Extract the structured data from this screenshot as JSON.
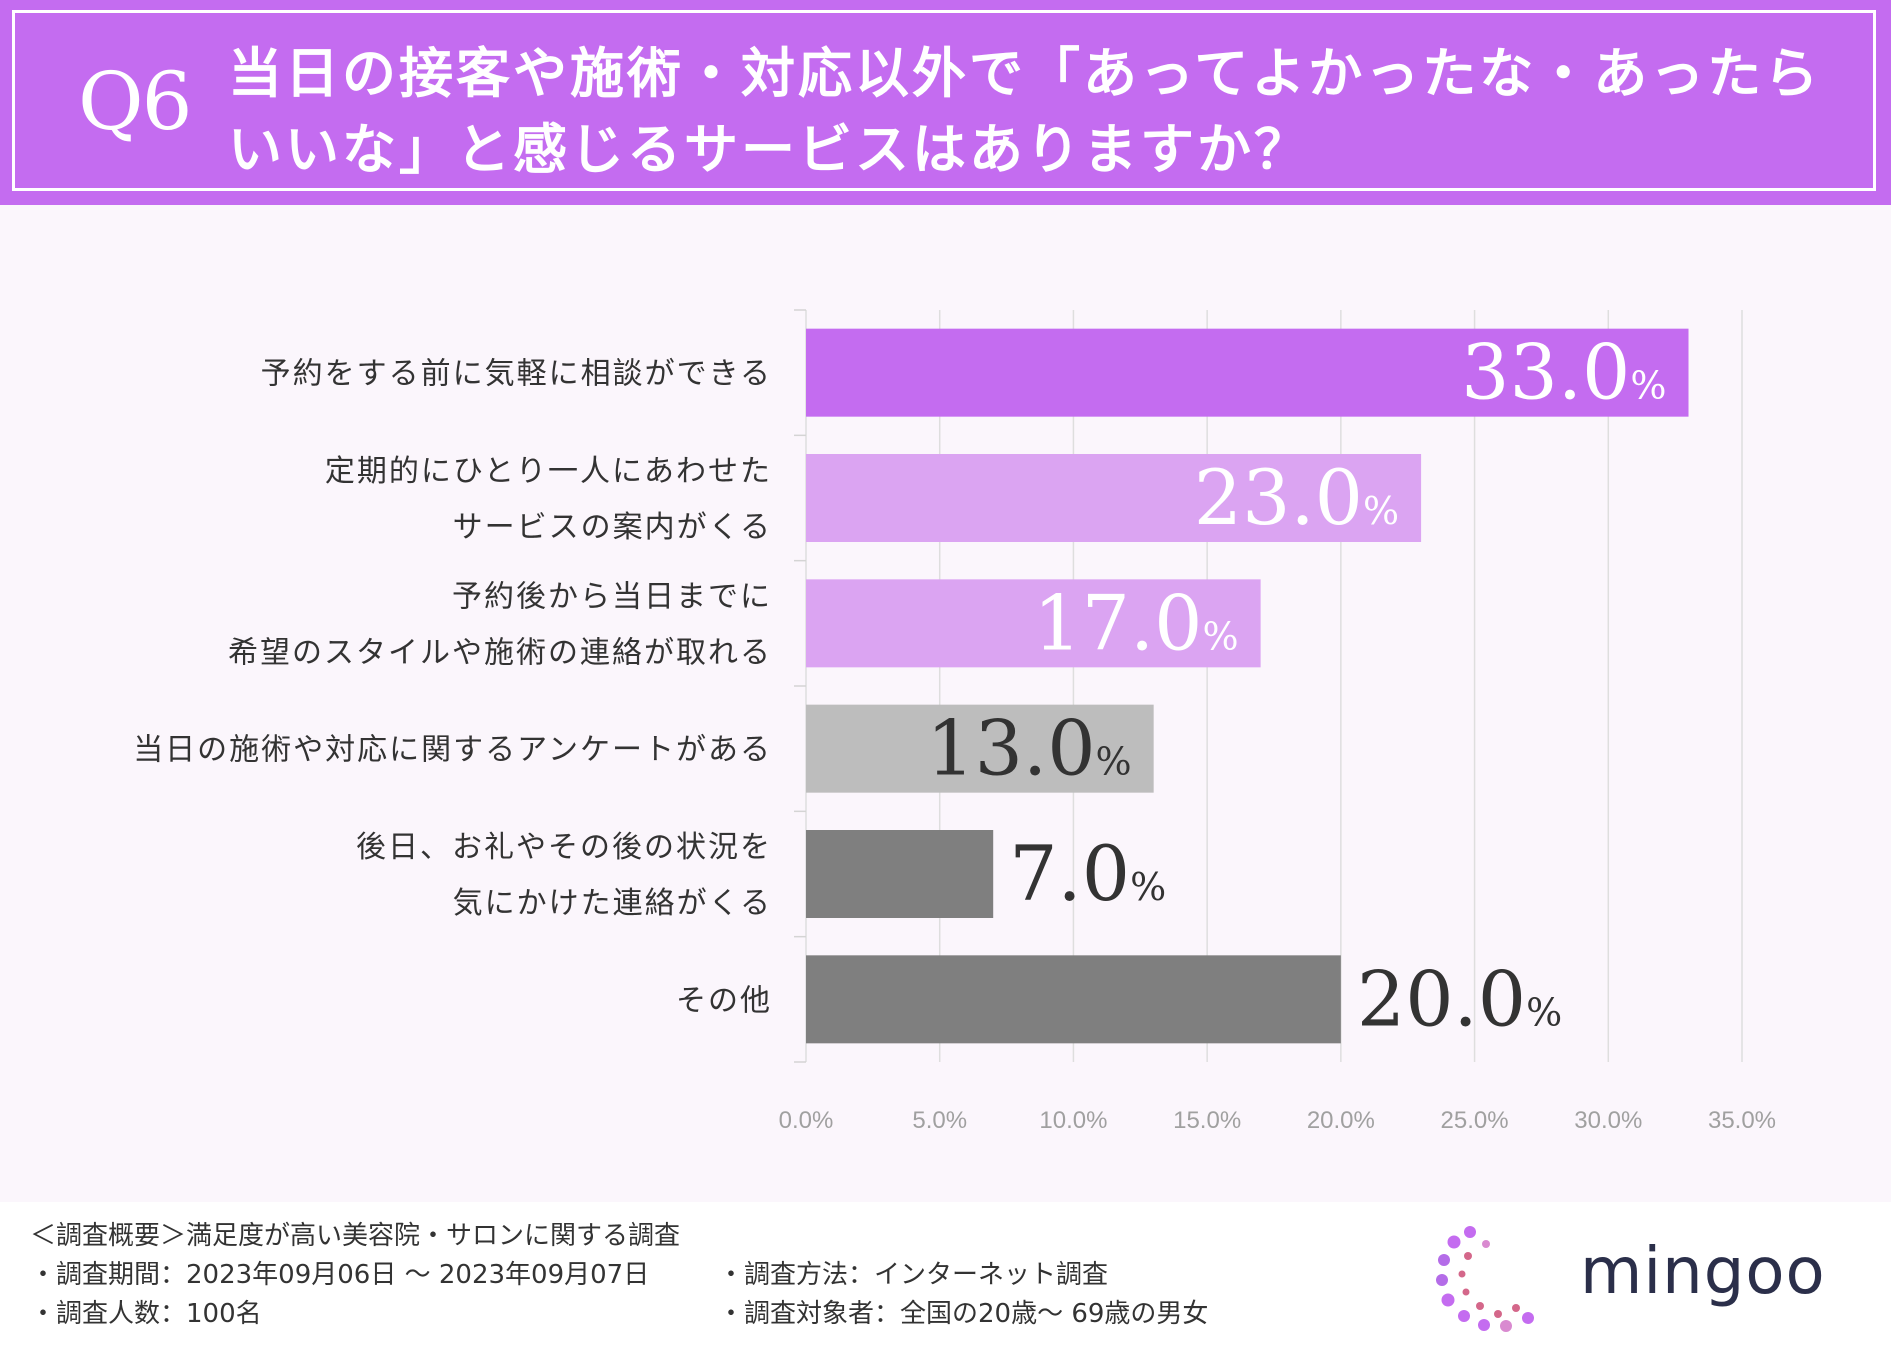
{
  "header": {
    "q_label": "Q6",
    "question": "当日の接客や施術・対応以外で「あってよかったな・あったらいいな」と感じるサービスはありますか？"
  },
  "colors": {
    "header_bg": "#c46cf0",
    "bar_primary": "#c46cf0",
    "bar_light_purple": "#dba4f2",
    "bar_light_gray": "#bdbdbd",
    "bar_dark_gray": "#7f7f7f"
  },
  "chart_data": {
    "type": "bar",
    "orientation": "horizontal",
    "categories": [
      [
        "予約をする前に気軽に相談ができる"
      ],
      [
        "定期的にひとり一人にあわせた",
        "サービスの案内がくる"
      ],
      [
        "予約後から当日までに",
        "希望のスタイルや施術の連絡が取れる"
      ],
      [
        "当日の施術や対応に関するアンケートがある"
      ],
      [
        "後日、お礼やその後の状況を",
        "気にかけた連絡がくる"
      ],
      [
        "その他"
      ]
    ],
    "values": [
      33.0,
      23.0,
      17.0,
      13.0,
      7.0,
      20.0
    ],
    "value_labels": [
      "33.0",
      "23.0",
      "17.0",
      "13.0",
      "7.0",
      "20.0"
    ],
    "unit": "%",
    "bar_colors": [
      "#c46cf0",
      "#dba4f2",
      "#dba4f2",
      "#bdbdbd",
      "#7f7f7f",
      "#7f7f7f"
    ],
    "label_inside": [
      true,
      true,
      true,
      true,
      false,
      false
    ],
    "label_color": [
      "#ffffff",
      "#ffffff",
      "#ffffff",
      "#333333",
      "#333333",
      "#333333"
    ],
    "x_ticks": [
      "0.0%",
      "5.0%",
      "10.0%",
      "15.0%",
      "20.0%",
      "25.0%",
      "30.0%",
      "35.0%"
    ],
    "xlim": [
      0,
      35
    ],
    "grid": true
  },
  "footer": {
    "overview": "＜調査概要＞満足度が高い美容院・サロンに関する調査",
    "period": "・調査期間：2023年09月06日 〜 2023年09月07日",
    "count": "・調査人数：100名",
    "method": "・調査方法：インターネット調査",
    "target": "・調査対象者：全国の20歳〜 69歳の男女"
  },
  "logo": {
    "text": "mingoo",
    "icon": "dotted-c-logo-icon"
  }
}
